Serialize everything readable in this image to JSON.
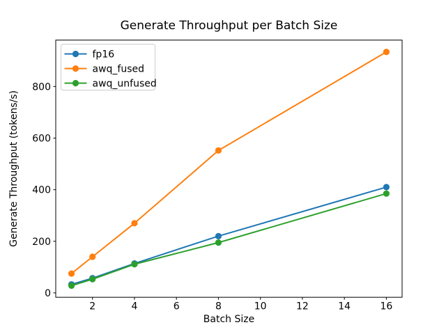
{
  "window": {
    "background": "#ffffff"
  },
  "chart_data": {
    "type": "line",
    "title": "Generate Throughput per Batch Size",
    "xlabel": "Batch Size",
    "ylabel": "Generate Throughput (tokens/s)",
    "x": [
      1,
      2,
      4,
      8,
      16
    ],
    "series": [
      {
        "name": "fp16",
        "color": "#1f77b4",
        "values": [
          33,
          57,
          114,
          220,
          410
        ]
      },
      {
        "name": "awq_fused",
        "color": "#ff7f0e",
        "values": [
          75,
          140,
          270,
          552,
          934
        ]
      },
      {
        "name": "awq_unfused",
        "color": "#2ca02c",
        "values": [
          28,
          53,
          111,
          195,
          385
        ]
      }
    ],
    "xlim": [
      0.25,
      16.75
    ],
    "ylim": [
      -17,
      980
    ],
    "xticks": [
      2,
      4,
      6,
      8,
      10,
      12,
      14,
      16
    ],
    "yticks": [
      0,
      200,
      400,
      600,
      800
    ],
    "grid": false,
    "legend_position": "upper left",
    "marker": "circle",
    "axis_color": "#000000",
    "legend_border_color": "#cccccc"
  }
}
